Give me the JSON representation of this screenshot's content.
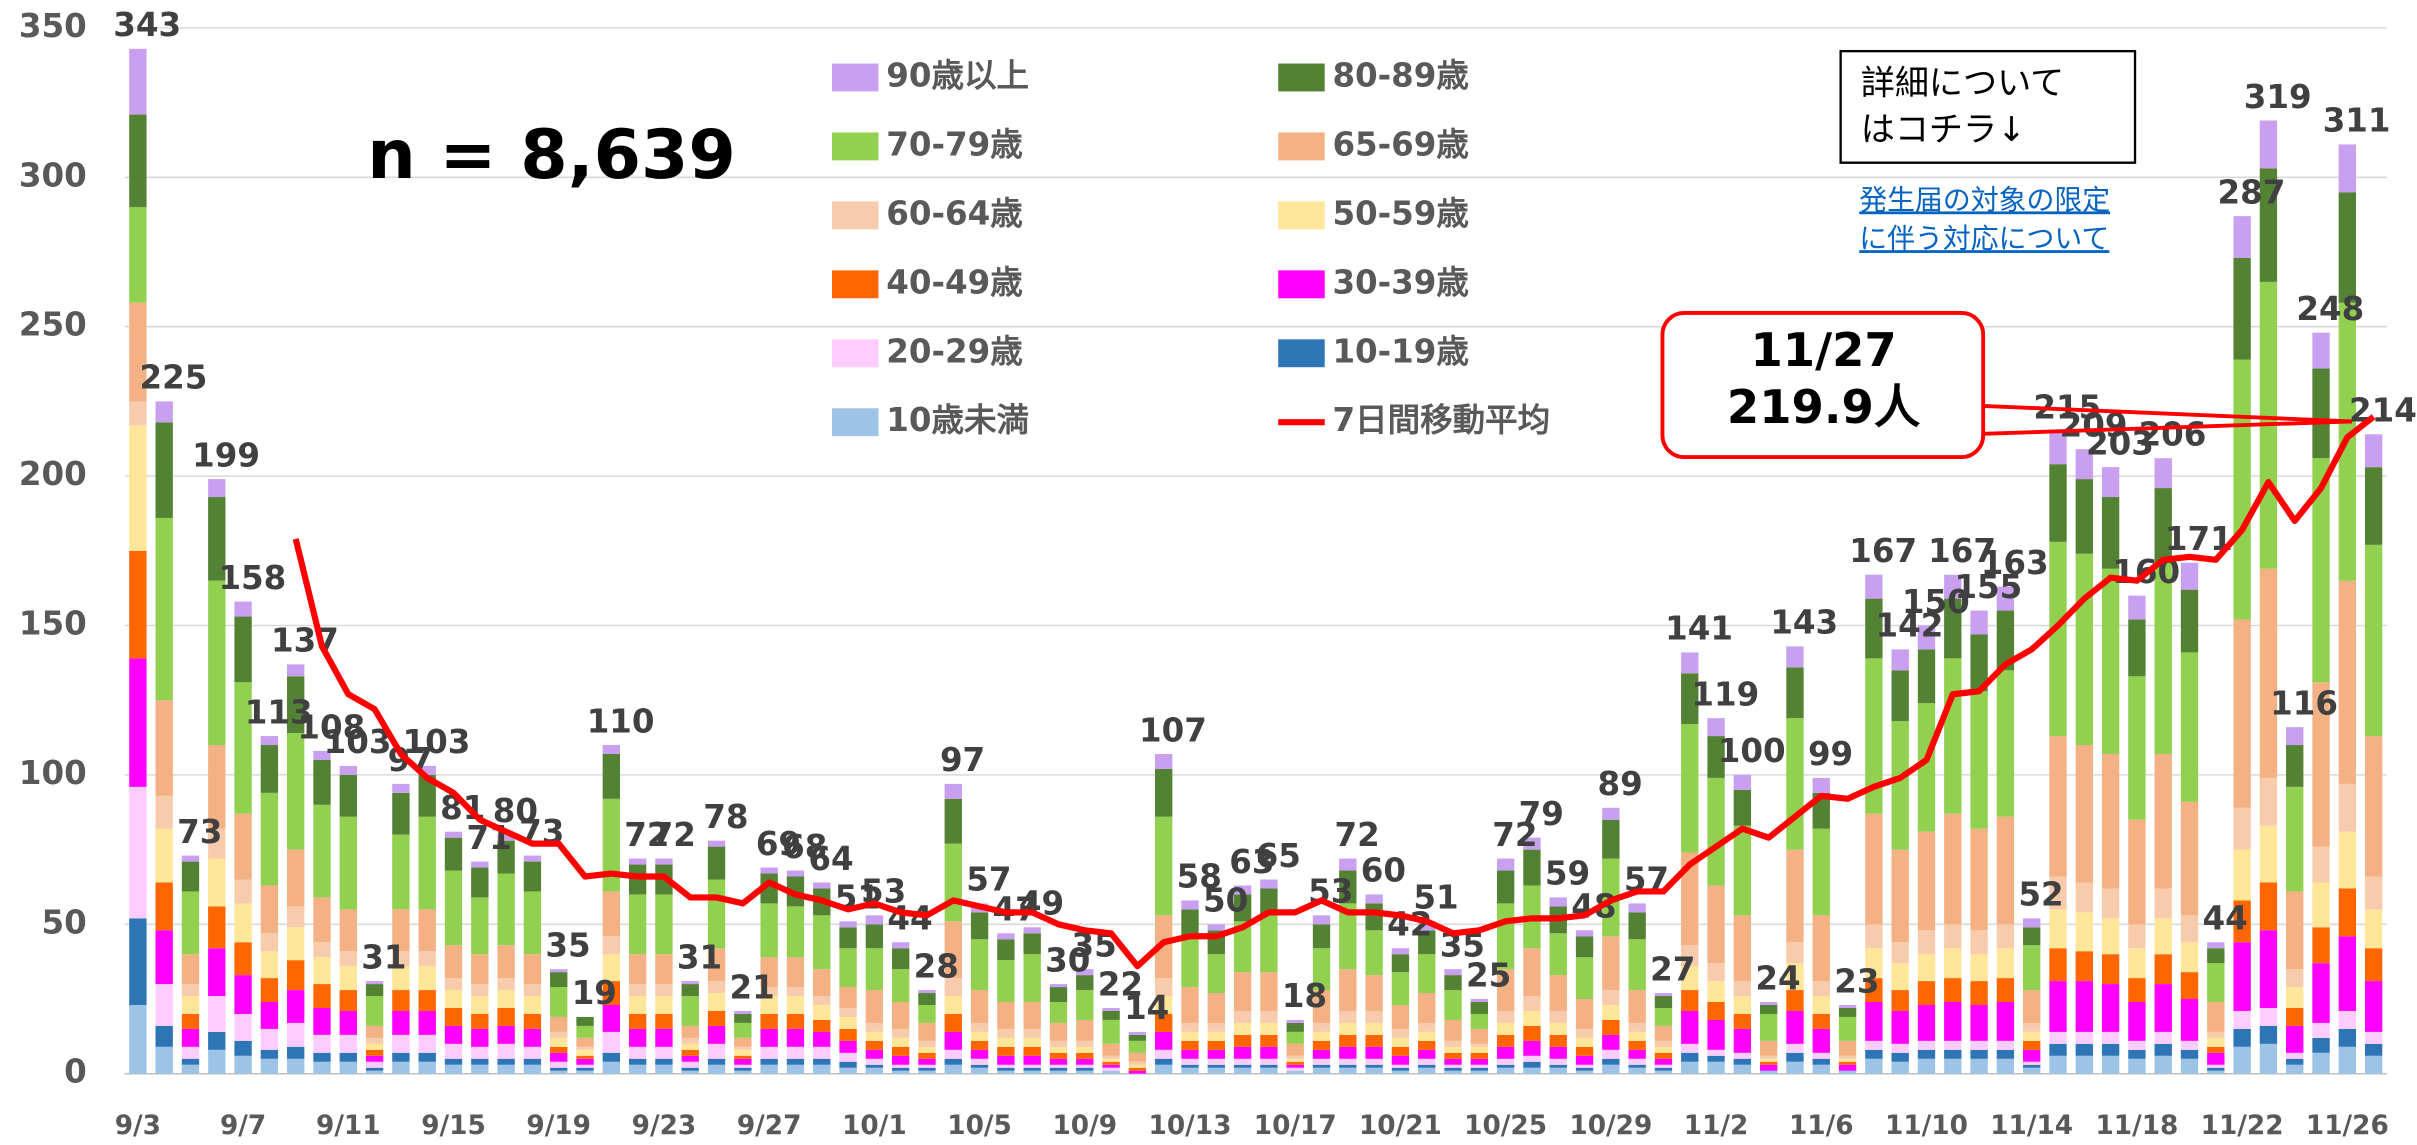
{
  "chart_data": {
    "type": "bar",
    "stacked": true,
    "categories": [
      "9/3",
      null,
      null,
      null,
      "9/7",
      null,
      null,
      null,
      "9/11",
      null,
      null,
      null,
      "9/15",
      null,
      null,
      null,
      "9/19",
      null,
      null,
      null,
      "9/23",
      null,
      null,
      null,
      "9/27",
      null,
      null,
      null,
      "10/1",
      null,
      null,
      null,
      "10/5",
      null,
      null,
      null,
      "10/9",
      null,
      null,
      null,
      "10/13",
      null,
      null,
      null,
      "10/17",
      null,
      null,
      null,
      "10/21",
      null,
      null,
      null,
      "10/25",
      null,
      null,
      null,
      "10/29",
      null,
      null,
      null,
      "11/2",
      null,
      null,
      null,
      "11/6",
      null,
      null,
      null,
      "11/10",
      null,
      null,
      null,
      "11/14",
      null,
      null,
      null,
      "11/18",
      null,
      null,
      null,
      "11/22",
      null,
      null,
      null,
      "11/26",
      null
    ],
    "series": [
      {
        "name": "10歳未満",
        "color": "#9dc3e6",
        "values": [
          23,
          9,
          3,
          8,
          6,
          5,
          5,
          4,
          4,
          1,
          4,
          4,
          3,
          3,
          3,
          3,
          1,
          1,
          4,
          3,
          3,
          1,
          3,
          1,
          3,
          3,
          3,
          2,
          2,
          1,
          1,
          3,
          2,
          1,
          1,
          1,
          1,
          1,
          0,
          3,
          2,
          2,
          2,
          2,
          1,
          2,
          2,
          2,
          1,
          2,
          1,
          1,
          2,
          2,
          2,
          1,
          3,
          2,
          1,
          4,
          4,
          3,
          1,
          4,
          3,
          1,
          5,
          4,
          5,
          5,
          5,
          5,
          2,
          6,
          6,
          6,
          5,
          6,
          5,
          1,
          9,
          10,
          3,
          7,
          9,
          6
        ]
      },
      {
        "name": "10-19歳",
        "color": "#2e75b6",
        "values": [
          29,
          7,
          2,
          6,
          5,
          3,
          4,
          3,
          3,
          1,
          3,
          3,
          2,
          2,
          2,
          2,
          1,
          1,
          3,
          2,
          2,
          1,
          2,
          1,
          2,
          2,
          2,
          2,
          1,
          1,
          1,
          2,
          1,
          1,
          1,
          1,
          1,
          0,
          0,
          2,
          1,
          1,
          1,
          1,
          0,
          1,
          1,
          1,
          1,
          1,
          1,
          1,
          1,
          2,
          1,
          1,
          2,
          1,
          1,
          3,
          2,
          2,
          0,
          3,
          2,
          0,
          3,
          3,
          3,
          3,
          3,
          3,
          1,
          4,
          4,
          4,
          3,
          4,
          3,
          1,
          6,
          6,
          2,
          5,
          6,
          4
        ]
      },
      {
        "name": "20-29歳",
        "color": "#ffccff",
        "values": [
          44,
          14,
          4,
          12,
          9,
          7,
          8,
          6,
          6,
          2,
          6,
          6,
          5,
          4,
          5,
          4,
          2,
          1,
          7,
          4,
          4,
          2,
          5,
          1,
          4,
          4,
          4,
          3,
          2,
          1,
          1,
          3,
          2,
          1,
          1,
          1,
          1,
          1,
          0,
          3,
          2,
          2,
          2,
          2,
          1,
          2,
          2,
          2,
          1,
          2,
          1,
          1,
          2,
          2,
          2,
          1,
          3,
          2,
          1,
          3,
          2,
          2,
          0,
          3,
          2,
          0,
          3,
          3,
          3,
          3,
          3,
          3,
          1,
          4,
          4,
          4,
          3,
          4,
          3,
          1,
          6,
          6,
          2,
          5,
          6,
          4
        ]
      },
      {
        "name": "30-39歳",
        "color": "#ff00ff",
        "values": [
          43,
          18,
          6,
          16,
          13,
          9,
          11,
          9,
          8,
          2,
          8,
          8,
          6,
          6,
          6,
          6,
          3,
          2,
          9,
          6,
          6,
          2,
          6,
          2,
          6,
          6,
          5,
          4,
          3,
          3,
          2,
          6,
          3,
          3,
          3,
          2,
          2,
          1,
          1,
          6,
          3,
          3,
          4,
          4,
          1,
          3,
          4,
          4,
          3,
          3,
          2,
          2,
          4,
          5,
          4,
          3,
          5,
          3,
          2,
          11,
          10,
          8,
          2,
          11,
          8,
          2,
          13,
          11,
          12,
          13,
          12,
          13,
          4,
          17,
          17,
          16,
          13,
          16,
          14,
          4,
          23,
          26,
          9,
          20,
          25,
          17
        ]
      },
      {
        "name": "40-49歳",
        "color": "#ff6600",
        "values": [
          36,
          16,
          5,
          14,
          11,
          8,
          10,
          8,
          7,
          2,
          7,
          7,
          6,
          5,
          6,
          5,
          2,
          1,
          8,
          5,
          5,
          2,
          5,
          1,
          5,
          5,
          4,
          4,
          3,
          3,
          2,
          6,
          3,
          3,
          3,
          2,
          2,
          1,
          1,
          6,
          3,
          3,
          4,
          4,
          1,
          3,
          4,
          4,
          3,
          3,
          2,
          2,
          4,
          5,
          4,
          3,
          5,
          3,
          2,
          7,
          6,
          5,
          1,
          7,
          5,
          1,
          8,
          7,
          8,
          8,
          8,
          8,
          3,
          11,
          10,
          10,
          8,
          10,
          9,
          2,
          14,
          16,
          6,
          12,
          16,
          11
        ]
      },
      {
        "name": "50-59歳",
        "color": "#ffe699",
        "values": [
          42,
          18,
          6,
          16,
          13,
          9,
          11,
          9,
          8,
          2,
          8,
          8,
          6,
          6,
          6,
          6,
          3,
          2,
          9,
          6,
          6,
          2,
          6,
          2,
          6,
          6,
          5,
          4,
          3,
          3,
          2,
          6,
          3,
          3,
          3,
          2,
          2,
          1,
          1,
          6,
          3,
          3,
          4,
          4,
          1,
          3,
          4,
          4,
          3,
          3,
          2,
          2,
          4,
          5,
          4,
          3,
          5,
          3,
          2,
          8,
          7,
          6,
          1,
          9,
          6,
          1,
          10,
          9,
          9,
          10,
          9,
          10,
          3,
          13,
          13,
          12,
          10,
          12,
          10,
          3,
          17,
          19,
          7,
          15,
          19,
          13
        ]
      },
      {
        "name": "60-64歳",
        "color": "#f8cbad",
        "values": [
          8,
          11,
          4,
          10,
          8,
          6,
          7,
          5,
          5,
          2,
          5,
          5,
          4,
          4,
          4,
          4,
          2,
          1,
          6,
          4,
          4,
          2,
          4,
          1,
          3,
          3,
          3,
          3,
          3,
          3,
          2,
          6,
          3,
          3,
          3,
          2,
          2,
          1,
          1,
          6,
          3,
          3,
          4,
          4,
          1,
          3,
          4,
          4,
          3,
          3,
          2,
          1,
          4,
          5,
          4,
          3,
          5,
          3,
          2,
          7,
          6,
          5,
          1,
          7,
          5,
          1,
          8,
          7,
          8,
          8,
          8,
          8,
          3,
          11,
          10,
          10,
          8,
          10,
          9,
          2,
          14,
          16,
          6,
          12,
          16,
          11
        ]
      },
      {
        "name": "65-69歳",
        "color": "#f4b183",
        "values": [
          33,
          32,
          10,
          28,
          22,
          16,
          19,
          15,
          14,
          4,
          14,
          14,
          11,
          10,
          11,
          10,
          5,
          3,
          15,
          10,
          10,
          4,
          11,
          3,
          10,
          10,
          9,
          7,
          11,
          9,
          6,
          19,
          11,
          9,
          9,
          6,
          7,
          4,
          3,
          21,
          12,
          10,
          13,
          13,
          4,
          11,
          14,
          12,
          8,
          10,
          7,
          5,
          14,
          16,
          12,
          10,
          18,
          11,
          5,
          31,
          26,
          22,
          5,
          31,
          22,
          5,
          37,
          31,
          33,
          37,
          34,
          36,
          11,
          47,
          46,
          45,
          35,
          45,
          38,
          10,
          63,
          70,
          26,
          55,
          68,
          47
        ]
      },
      {
        "name": "70-79歳",
        "color": "#92d050",
        "values": [
          32,
          61,
          21,
          55,
          44,
          31,
          39,
          31,
          31,
          10,
          25,
          31,
          25,
          19,
          24,
          21,
          10,
          4,
          31,
          20,
          20,
          10,
          23,
          5,
          18,
          17,
          18,
          13,
          14,
          11,
          6,
          26,
          17,
          14,
          16,
          7,
          10,
          8,
          4,
          33,
          17,
          13,
          17,
          19,
          4,
          14,
          22,
          15,
          11,
          13,
          10,
          5,
          22,
          21,
          14,
          14,
          26,
          17,
          6,
          43,
          36,
          30,
          9,
          44,
          29,
          8,
          52,
          43,
          43,
          52,
          46,
          49,
          15,
          65,
          64,
          62,
          48,
          64,
          50,
          13,
          87,
          96,
          35,
          75,
          93,
          64
        ]
      },
      {
        "name": "80-89歳",
        "color": "#548235",
        "values": [
          31,
          32,
          10,
          28,
          22,
          16,
          19,
          15,
          14,
          4,
          14,
          14,
          11,
          10,
          11,
          10,
          5,
          3,
          15,
          10,
          10,
          4,
          11,
          3,
          10,
          10,
          9,
          7,
          8,
          7,
          4,
          15,
          9,
          7,
          7,
          5,
          5,
          3,
          2,
          16,
          9,
          8,
          9,
          9,
          3,
          8,
          11,
          9,
          6,
          8,
          5,
          4,
          11,
          12,
          9,
          7,
          13,
          9,
          4,
          17,
          14,
          12,
          3,
          17,
          12,
          3,
          20,
          17,
          18,
          20,
          19,
          20,
          6,
          26,
          25,
          24,
          19,
          25,
          21,
          5,
          34,
          38,
          14,
          30,
          37,
          26
        ]
      },
      {
        "name": "90歳以上",
        "color": "#c9a0f0",
        "values": [
          22,
          7,
          2,
          6,
          5,
          3,
          4,
          3,
          3,
          1,
          3,
          3,
          2,
          2,
          2,
          2,
          1,
          0,
          3,
          2,
          2,
          1,
          2,
          1,
          2,
          2,
          2,
          2,
          3,
          2,
          1,
          5,
          3,
          2,
          2,
          1,
          2,
          1,
          1,
          5,
          3,
          2,
          3,
          3,
          1,
          3,
          4,
          3,
          2,
          3,
          2,
          1,
          4,
          4,
          3,
          2,
          4,
          3,
          1,
          7,
          6,
          5,
          1,
          7,
          5,
          1,
          8,
          7,
          8,
          8,
          8,
          8,
          3,
          11,
          10,
          10,
          8,
          10,
          9,
          2,
          14,
          16,
          6,
          12,
          16,
          11
        ]
      }
    ],
    "totals": [
      343,
      225,
      73,
      199,
      158,
      113,
      137,
      108,
      103,
      31,
      97,
      103,
      81,
      71,
      80,
      73,
      35,
      19,
      110,
      72,
      72,
      31,
      78,
      21,
      69,
      68,
      64,
      51,
      53,
      44,
      28,
      97,
      57,
      47,
      49,
      30,
      35,
      22,
      14,
      107,
      58,
      50,
      63,
      65,
      18,
      53,
      72,
      60,
      42,
      51,
      35,
      25,
      72,
      79,
      59,
      48,
      89,
      57,
      27,
      141,
      119,
      100,
      24,
      143,
      99,
      23,
      167,
      142,
      150,
      167,
      155,
      163,
      52,
      215,
      209,
      203,
      160,
      206,
      171,
      44,
      287,
      319,
      116,
      248,
      311,
      214
    ],
    "moving_average": {
      "name": "7日間移動平均",
      "color": "#ff0000",
      "values": [
        null,
        null,
        null,
        null,
        null,
        null,
        179,
        143,
        127,
        122,
        107,
        99,
        94,
        85,
        81,
        77,
        77,
        66,
        67,
        66,
        66,
        59,
        59,
        57,
        64,
        60,
        58,
        55,
        57,
        54,
        53,
        58,
        56,
        54,
        54,
        50,
        48,
        47,
        36,
        44,
        46,
        46,
        49,
        54,
        54,
        58,
        54,
        54,
        53,
        51,
        47,
        48,
        51,
        52,
        52,
        53,
        58,
        61,
        61,
        70,
        76,
        82,
        79,
        86,
        93,
        92,
        96,
        99,
        105,
        127,
        128,
        137,
        142,
        150,
        159,
        166,
        165,
        172,
        173,
        172,
        182,
        198,
        185,
        196,
        213,
        219.9
      ]
    },
    "ylim": [
      0,
      350
    ],
    "yticks": [
      0,
      50,
      100,
      150,
      200,
      250,
      300,
      350
    ],
    "grid": true,
    "annotation_n": "n = 8,639",
    "callout": [
      "11/27",
      "219.9人"
    ],
    "note_box": [
      "詳細について",
      "はコチラ↓"
    ],
    "link": [
      "発生届の対象の限定",
      "に伴う対応について"
    ]
  }
}
